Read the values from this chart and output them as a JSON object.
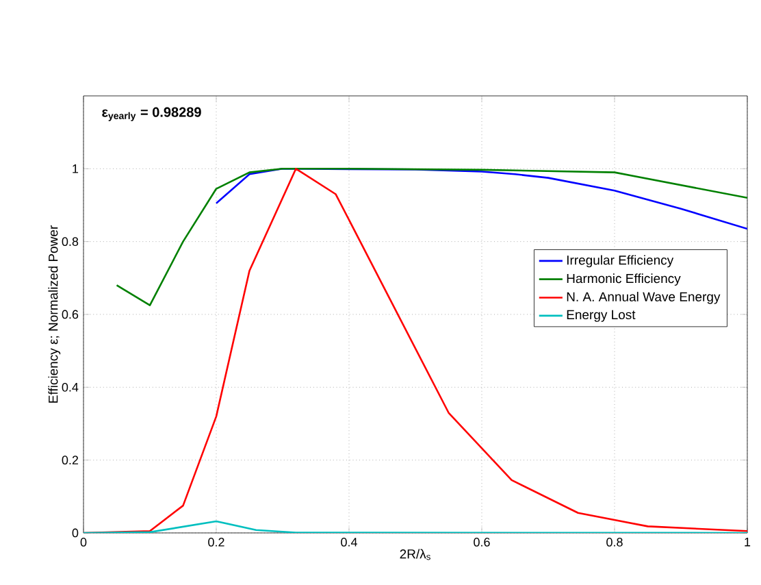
{
  "chart_data": {
    "type": "line",
    "xlabel": "2R/λ$_{s}$",
    "ylabel": "Efficiency ε; Normalized Power",
    "annotations": [
      "ε$_{yearly}$ = 0.98289"
    ],
    "xlim": [
      0,
      1
    ],
    "ylim": [
      0,
      1.2
    ],
    "xticks": [
      0,
      0.2,
      0.4,
      0.6,
      0.8,
      1
    ],
    "yticks": [
      0,
      0.2,
      0.4,
      0.6,
      0.8,
      1
    ],
    "grid": true,
    "legend": "right",
    "marker": "none",
    "line_style": "solid",
    "series": [
      {
        "name": "Irregular Efficiency",
        "color": "#0000ff",
        "x": [
          0.2,
          0.25,
          0.3,
          0.5,
          0.6,
          0.65,
          0.7,
          0.8,
          0.9,
          1.0
        ],
        "values": [
          0.905,
          0.985,
          1.0,
          0.998,
          0.992,
          0.985,
          0.975,
          0.94,
          0.89,
          0.835
        ]
      },
      {
        "name": "Harmonic Efficiency",
        "color": "#008000",
        "x": [
          0.05,
          0.1,
          0.15,
          0.2,
          0.25,
          0.3,
          0.4,
          0.6,
          0.8,
          1.0
        ],
        "values": [
          0.68,
          0.625,
          0.8,
          0.945,
          0.99,
          1.0,
          1.0,
          0.997,
          0.99,
          0.92
        ]
      },
      {
        "name": "N. A. Annual Wave Energy",
        "color": "#ff0000",
        "x": [
          0,
          0.1,
          0.15,
          0.2,
          0.25,
          0.32,
          0.38,
          0.55,
          0.645,
          0.745,
          0.85,
          1.0
        ],
        "values": [
          0,
          0.005,
          0.075,
          0.32,
          0.72,
          1.0,
          0.93,
          0.33,
          0.145,
          0.055,
          0.018,
          0.005
        ]
      },
      {
        "name": "Energy Lost",
        "color": "#00bfbf",
        "x": [
          0,
          0.1,
          0.2,
          0.26,
          0.32,
          1.0
        ],
        "values": [
          0,
          0.002,
          0.032,
          0.008,
          0.001,
          0
        ]
      }
    ]
  }
}
